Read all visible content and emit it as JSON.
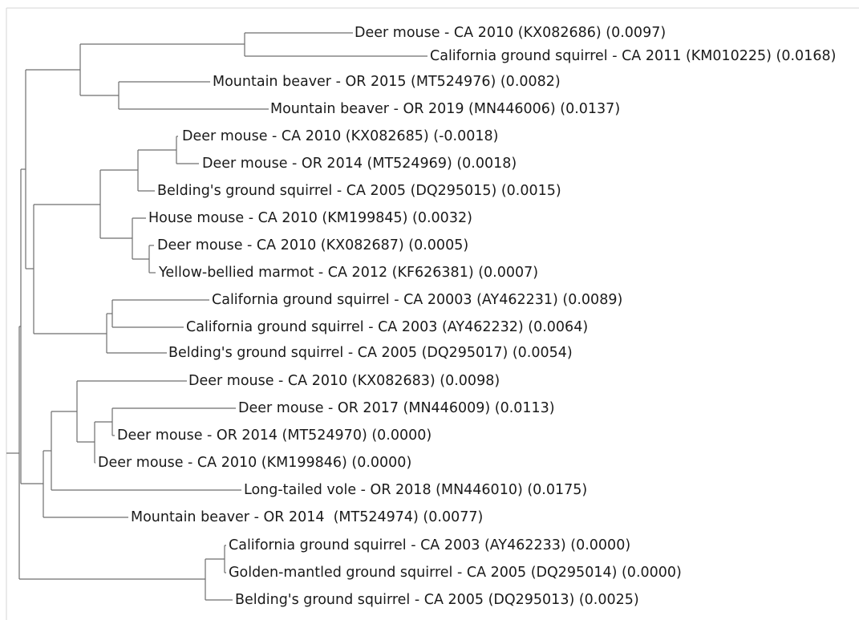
{
  "tree": {
    "leaves": [
      {
        "id": "L1",
        "label": "Deer mouse - CA 2010 (KX082686) (0.0097)"
      },
      {
        "id": "L2",
        "label": "California ground squirrel - CA 2011 (KM010225) (0.0168)"
      },
      {
        "id": "L3",
        "label": "Mountain beaver - OR 2015 (MT524976) (0.0082)"
      },
      {
        "id": "L4",
        "label": "Mountain beaver - OR 2019 (MN446006) (0.0137)"
      },
      {
        "id": "L5",
        "label": "Deer mouse - CA 2010 (KX082685) (-0.0018)"
      },
      {
        "id": "L6",
        "label": "Deer mouse - OR 2014 (MT524969) (0.0018)"
      },
      {
        "id": "L7",
        "label": "Belding's ground squirrel - CA 2005 (DQ295015) (0.0015)"
      },
      {
        "id": "L8",
        "label": "House mouse - CA 2010 (KM199845) (0.0032)"
      },
      {
        "id": "L9",
        "label": "Deer mouse - CA 2010 (KX082687) (0.0005)"
      },
      {
        "id": "L10",
        "label": "Yellow-bellied marmot - CA 2012 (KF626381) (0.0007)"
      },
      {
        "id": "L11",
        "label": "California ground squirrel - CA 20003 (AY462231) (0.0089)"
      },
      {
        "id": "L12",
        "label": "California ground squirrel - CA 2003 (AY462232) (0.0064)"
      },
      {
        "id": "L13",
        "label": "Belding's ground squirrel - CA 2005 (DQ295017) (0.0054)"
      },
      {
        "id": "L14",
        "label": "Deer mouse - CA 2010 (KX082683) (0.0098)"
      },
      {
        "id": "L15",
        "label": "Deer mouse - OR 2017 (MN446009) (0.0113)"
      },
      {
        "id": "L16",
        "label": "Deer mouse - OR 2014 (MT524970) (0.0000)"
      },
      {
        "id": "L17",
        "label": "Deer mouse - CA 2010 (KM199846) (0.0000)"
      },
      {
        "id": "L18",
        "label": "Long-tailed vole - OR 2018 (MN446010) (0.0175)"
      },
      {
        "id": "L19",
        "label": "Mountain beaver - OR 2014  (MT524974) (0.0077)"
      },
      {
        "id": "L20",
        "label": "California ground squirrel - CA 2003 (AY462233) (0.0000)"
      },
      {
        "id": "L21",
        "label": "Golden-mantled ground squirrel - CA 2005 (DQ295014) (0.0000)"
      },
      {
        "id": "L22",
        "label": "Belding's ground squirrel - CA 2005 (DQ295013) (0.0025)"
      }
    ]
  }
}
